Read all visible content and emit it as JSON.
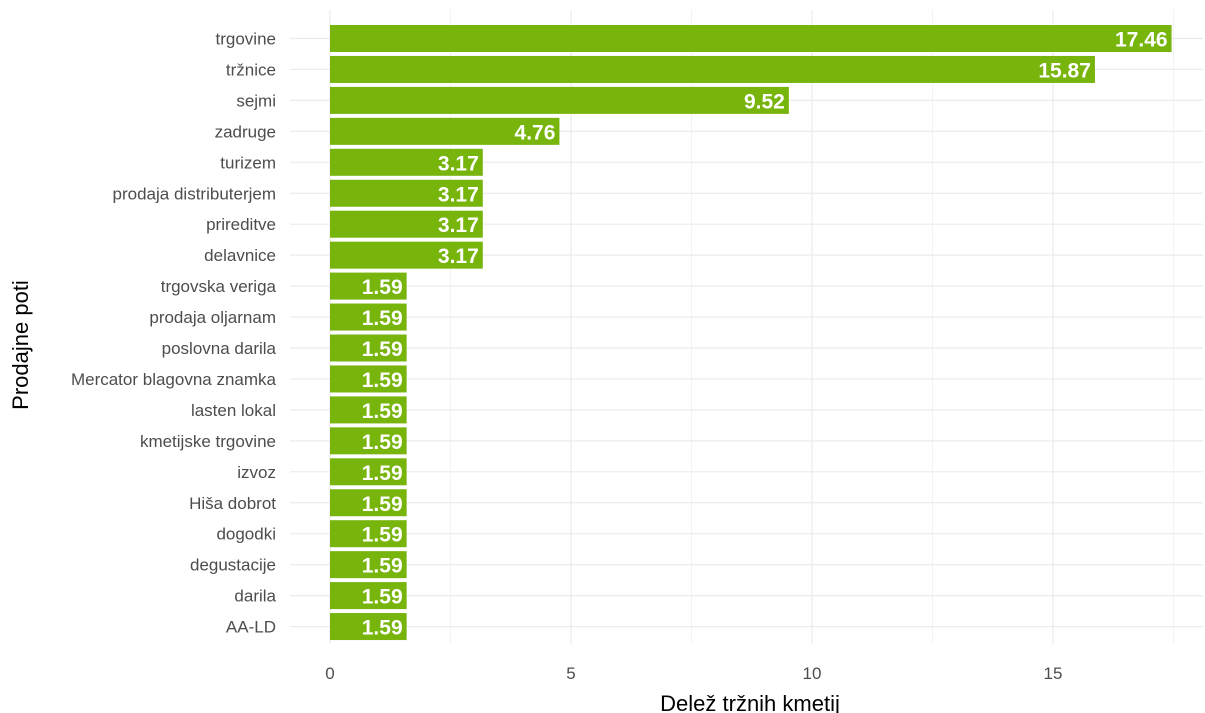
{
  "chart_data": {
    "type": "bar",
    "orientation": "horizontal",
    "xlabel": "Delež tržnih kmetij",
    "ylabel": "Prodajne poti",
    "xlim": [
      0,
      18
    ],
    "x_ticks": [
      0,
      5,
      10,
      15
    ],
    "grid": true,
    "bar_color": "#77b40c",
    "categories": [
      "trgovine",
      "tržnice",
      "sejmi",
      "zadruge",
      "turizem",
      "prodaja distributerjem",
      "prireditve",
      "delavnice",
      "trgovska veriga",
      "prodaja oljarnam",
      "poslovna darila",
      "Mercator blagovna znamka",
      "lasten lokal",
      "kmetijske trgovine",
      "izvoz",
      "Hiša dobrot",
      "dogodki",
      "degustacije",
      "darila",
      "AA-LD"
    ],
    "values": [
      17.46,
      15.87,
      9.52,
      4.76,
      3.17,
      3.17,
      3.17,
      3.17,
      1.59,
      1.59,
      1.59,
      1.59,
      1.59,
      1.59,
      1.59,
      1.59,
      1.59,
      1.59,
      1.59,
      1.59
    ],
    "value_labels": [
      "17.46",
      "15.87",
      "9.52",
      "4.76",
      "3.17",
      "3.17",
      "3.17",
      "3.17",
      "1.59",
      "1.59",
      "1.59",
      "1.59",
      "1.59",
      "1.59",
      "1.59",
      "1.59",
      "1.59",
      "1.59",
      "1.59",
      "1.59"
    ]
  }
}
